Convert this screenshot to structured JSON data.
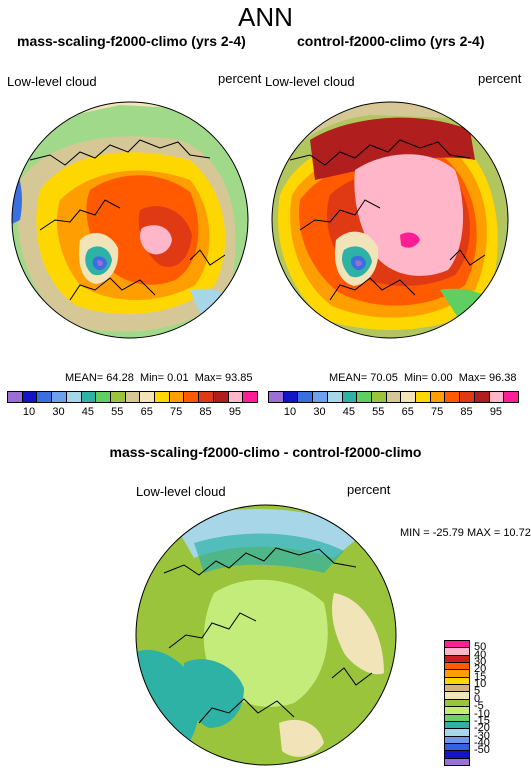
{
  "figure": {
    "title": "ANN"
  },
  "panels": [
    {
      "id": "left",
      "title": "mass-scaling-f2000-climo (yrs 2-4)",
      "variable": "Low-level cloud",
      "units": "percent",
      "mean_label": "MEAN=",
      "mean": "64.28",
      "min_label": "Min=",
      "min": "0.01",
      "max_label": "Max=",
      "max": "93.85"
    },
    {
      "id": "right",
      "title": "control-f2000-climo (yrs 2-4)",
      "variable": "Low-level cloud",
      "units": "percent",
      "mean_label": "MEAN=",
      "mean": "70.05",
      "min_label": "Min=",
      "min": "0.00",
      "max_label": "Max=",
      "max": "96.38"
    }
  ],
  "diff_panel": {
    "title": "mass-scaling-f2000-climo - control-f2000-climo",
    "variable": "Low-level cloud",
    "units": "percent",
    "minmax_text": "MIN = -25.79 MAX =  10.72"
  },
  "colorbar_top": {
    "tick_labels": [
      "10",
      "30",
      "45",
      "55",
      "65",
      "75",
      "85",
      "95"
    ],
    "colors": [
      "#9a6fd6",
      "#1414c8",
      "#3a6fe0",
      "#6fa0ee",
      "#a6d6e8",
      "#2fb2a6",
      "#5fcf62",
      "#9ac43c",
      "#d6c896",
      "#f0e4b8",
      "#ffd700",
      "#ff9e00",
      "#ff5a00",
      "#e03a14",
      "#b01e1e",
      "#ffb6c8",
      "#ff1e96"
    ]
  },
  "colorbar_diff": {
    "tick_labels": [
      "50",
      "40",
      "30",
      "20",
      "15",
      "10",
      "5",
      "0",
      "-5",
      "-10",
      "-15",
      "-20",
      "-30",
      "-40",
      "-50"
    ],
    "colors": [
      "#ff1e96",
      "#ffb6c8",
      "#c81e1e",
      "#ff5a00",
      "#ff9e00",
      "#ffd700",
      "#d6b27a",
      "#f0e4b8",
      "#9ac43c",
      "#c4ec7a",
      "#6fd06a",
      "#2fb2a6",
      "#a6d6e8",
      "#6f96ea",
      "#3a5ee0",
      "#1414c8",
      "#9a6fd6"
    ]
  },
  "map_colors": {
    "ocean_purple": "#9a6fd6",
    "blue": "#3a6fe0",
    "light_blue": "#a6d6e8",
    "teal": "#2fb2a6",
    "green": "#5fcf62",
    "olive": "#9ac43c",
    "tan": "#d6c896",
    "cream": "#f0e4b8",
    "yellow": "#ffd700",
    "orange": "#ff9e00",
    "red_orange": "#ff5a00",
    "red": "#e03a14",
    "dark_red": "#b01e1e",
    "pink": "#ffb6c8",
    "magenta": "#ff1e96",
    "lime": "#c4ec7a"
  }
}
